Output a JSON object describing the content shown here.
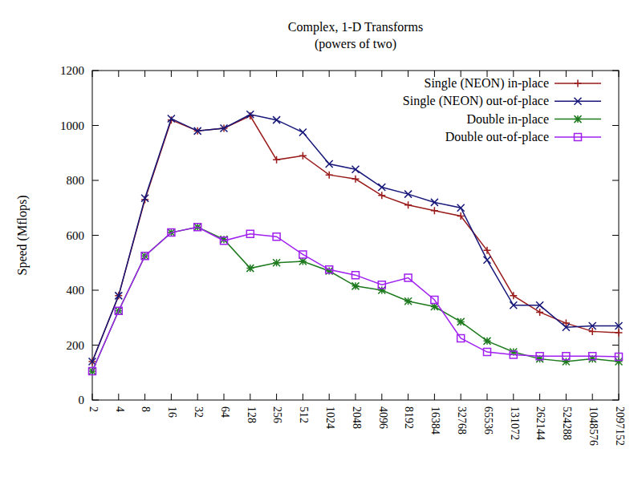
{
  "chart_data": {
    "type": "line",
    "title": "Complex, 1-D Transforms",
    "subtitle": "(powers of two)",
    "y_label": "Speed (Mflops)",
    "categories": [
      "2",
      "4",
      "8",
      "16",
      "32",
      "64",
      "128",
      "256",
      "512",
      "1024",
      "2048",
      "4096",
      "8192",
      "16384",
      "32768",
      "65536",
      "131072",
      "262144",
      "524288",
      "1048576",
      "2097152"
    ],
    "ylim": [
      0,
      1200
    ],
    "yticks": [
      0,
      200,
      400,
      600,
      800,
      1000,
      1200
    ],
    "grid": false,
    "legend": "upper right",
    "series": [
      {
        "name": "Single (NEON) in-place",
        "color": "#9a1b1b",
        "marker": "plus",
        "values": [
          140,
          380,
          730,
          1020,
          980,
          990,
          1035,
          875,
          890,
          820,
          805,
          745,
          710,
          690,
          670,
          545,
          380,
          320,
          280,
          250,
          245
        ]
      },
      {
        "name": "Single (NEON) out-of-place",
        "color": "#17177a",
        "marker": "cross",
        "values": [
          140,
          380,
          735,
          1025,
          980,
          990,
          1040,
          1020,
          975,
          860,
          840,
          775,
          750,
          720,
          700,
          510,
          345,
          345,
          265,
          270,
          270
        ]
      },
      {
        "name": "Double in-place",
        "color": "#1e7a1e",
        "marker": "star",
        "values": [
          105,
          325,
          525,
          610,
          630,
          585,
          480,
          500,
          505,
          470,
          415,
          400,
          360,
          340,
          285,
          215,
          175,
          150,
          140,
          150,
          140
        ]
      },
      {
        "name": "Double out-of-place",
        "color": "#a020f0",
        "marker": "square",
        "values": [
          105,
          325,
          525,
          610,
          630,
          580,
          605,
          595,
          530,
          475,
          455,
          420,
          445,
          365,
          225,
          175,
          165,
          160,
          160,
          160,
          158
        ]
      }
    ]
  }
}
